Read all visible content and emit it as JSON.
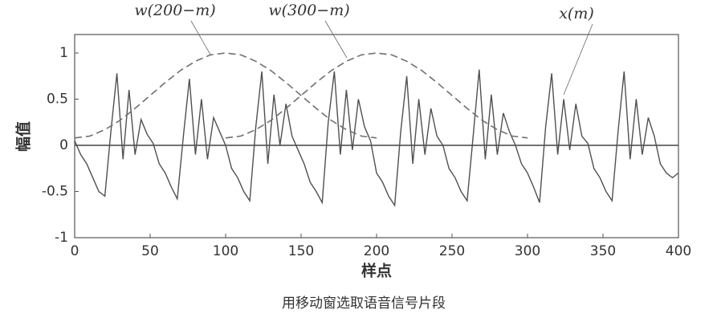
{
  "chart_data": {
    "type": "line",
    "xlabel": "样点",
    "ylabel": "幅值",
    "caption": "用移动窗选取语音信号片段",
    "xlim": [
      0,
      400
    ],
    "xticks": [
      0,
      50,
      100,
      150,
      200,
      250,
      300,
      350,
      400
    ],
    "ylim": [
      -1,
      1.2
    ],
    "yticks": [
      -1,
      -0.5,
      0,
      0.5,
      1
    ],
    "annotations": [
      "w(200−m)",
      "w(300−m)",
      "x(m)"
    ],
    "series": [
      {
        "name": "x(m)",
        "color": "#505050",
        "dash": false,
        "x": [
          0,
          4,
          8,
          12,
          16,
          20,
          24,
          28,
          32,
          36,
          40,
          44,
          48,
          52,
          56,
          60,
          64,
          68,
          72,
          76,
          80,
          84,
          88,
          92,
          96,
          100,
          104,
          108,
          112,
          116,
          120,
          124,
          128,
          132,
          136,
          140,
          144,
          148,
          152,
          156,
          160,
          164,
          168,
          172,
          176,
          180,
          184,
          188,
          192,
          196,
          200,
          204,
          208,
          212,
          216,
          220,
          224,
          228,
          232,
          236,
          240,
          244,
          248,
          252,
          256,
          260,
          264,
          268,
          272,
          276,
          280,
          284,
          288,
          292,
          296,
          300,
          304,
          308,
          312,
          316,
          320,
          324,
          328,
          332,
          336,
          340,
          344,
          348,
          352,
          356,
          360,
          364,
          368,
          372,
          376,
          380,
          384,
          388,
          392,
          396,
          400
        ],
        "values": [
          0.05,
          -0.1,
          -0.2,
          -0.35,
          -0.5,
          -0.55,
          0.15,
          0.78,
          -0.15,
          0.6,
          -0.1,
          0.28,
          0.12,
          0.02,
          -0.2,
          -0.3,
          -0.45,
          -0.58,
          0.1,
          0.72,
          -0.1,
          0.5,
          -0.15,
          0.3,
          0.15,
          0,
          -0.25,
          -0.35,
          -0.5,
          -0.6,
          0.2,
          0.8,
          -0.2,
          0.55,
          0,
          0.45,
          0.1,
          -0.05,
          -0.2,
          -0.4,
          -0.5,
          -0.62,
          0.25,
          0.8,
          -0.1,
          0.6,
          -0.05,
          0.5,
          0.2,
          0.05,
          -0.3,
          -0.4,
          -0.55,
          -0.65,
          0.15,
          0.75,
          -0.2,
          0.5,
          -0.1,
          0.4,
          0.1,
          0,
          -0.25,
          -0.35,
          -0.5,
          -0.6,
          0.1,
          0.82,
          -0.15,
          0.55,
          -0.1,
          0.35,
          0.15,
          0,
          -0.2,
          -0.3,
          -0.45,
          -0.62,
          0.2,
          0.78,
          -0.1,
          0.5,
          -0.05,
          0.45,
          0.1,
          0.02,
          -0.25,
          -0.35,
          -0.5,
          -0.6,
          0.15,
          0.8,
          -0.15,
          0.5,
          -0.1,
          0.3,
          0.1,
          -0.2,
          -0.3,
          -0.35,
          -0.3
        ]
      },
      {
        "name": "w(200−m)",
        "color": "#707070",
        "dash": true,
        "x": [
          0,
          10,
          20,
          30,
          40,
          50,
          60,
          70,
          80,
          90,
          100,
          110,
          120,
          130,
          140,
          150,
          160,
          170,
          180,
          190,
          200
        ],
        "values": [
          0.08,
          0.1,
          0.17,
          0.27,
          0.4,
          0.54,
          0.68,
          0.81,
          0.91,
          0.98,
          1,
          0.98,
          0.91,
          0.81,
          0.68,
          0.54,
          0.4,
          0.27,
          0.17,
          0.1,
          0.08
        ]
      },
      {
        "name": "w(300−m)",
        "color": "#707070",
        "dash": true,
        "x": [
          100,
          110,
          120,
          130,
          140,
          150,
          160,
          170,
          180,
          190,
          200,
          210,
          220,
          230,
          240,
          250,
          260,
          270,
          280,
          290,
          300
        ],
        "values": [
          0.08,
          0.1,
          0.17,
          0.27,
          0.4,
          0.54,
          0.68,
          0.81,
          0.91,
          0.98,
          1,
          0.98,
          0.91,
          0.81,
          0.68,
          0.54,
          0.4,
          0.27,
          0.17,
          0.1,
          0.08
        ]
      }
    ]
  }
}
